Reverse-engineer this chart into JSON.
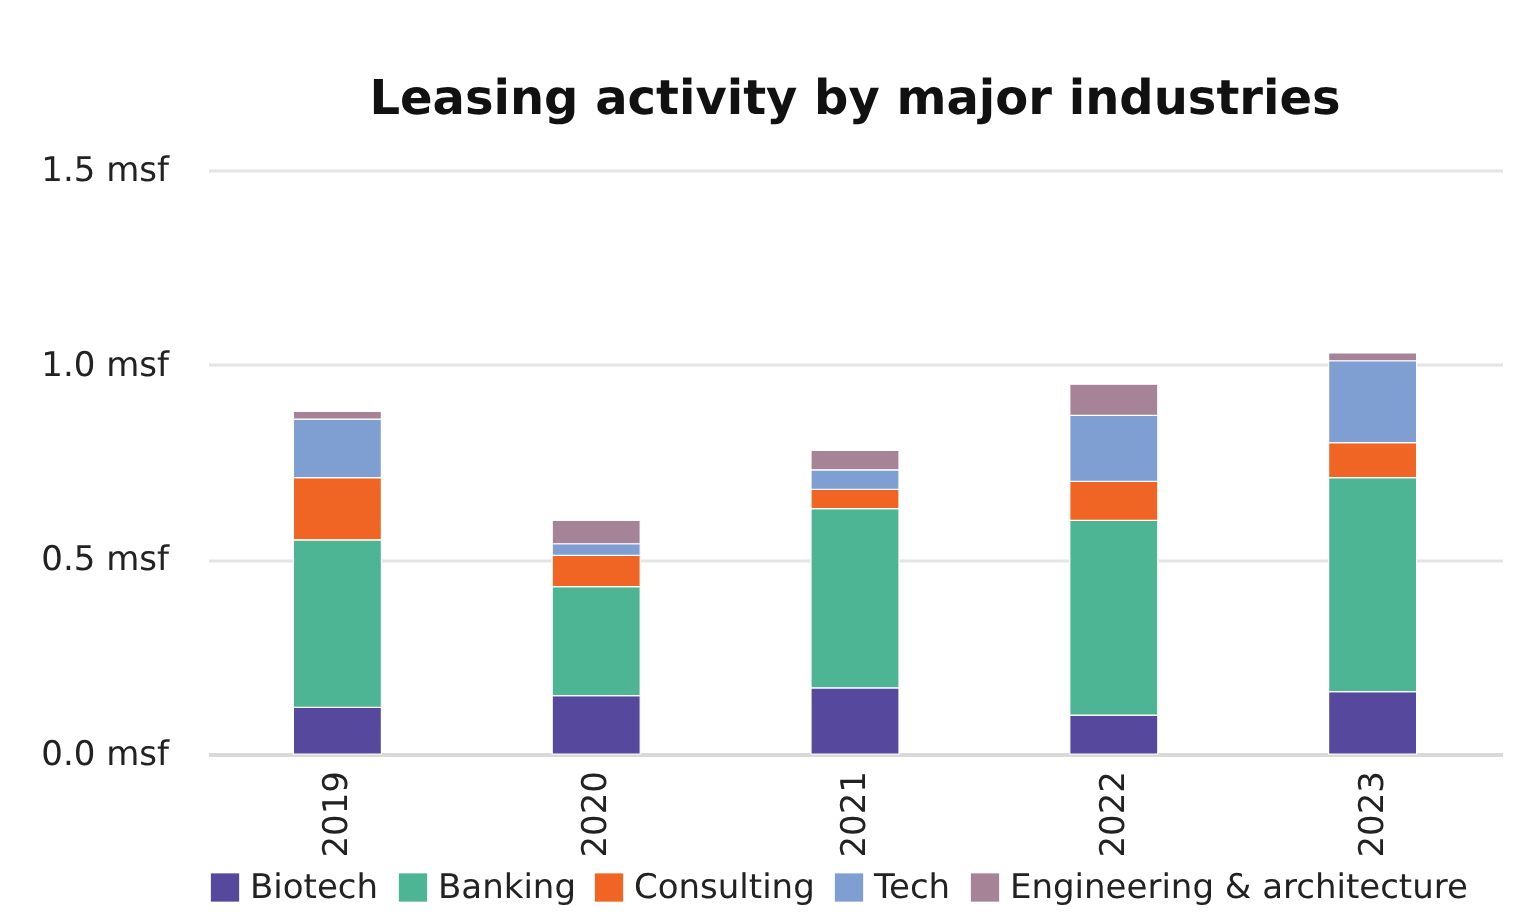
{
  "chart_data": {
    "type": "bar",
    "title": "Leasing activity by major industries",
    "categories": [
      "2019",
      "2020",
      "2021",
      "2022",
      "2023"
    ],
    "stacked": true,
    "series": [
      {
        "name": "Biotech",
        "color": "#55489d",
        "values": [
          0.12,
          0.15,
          0.17,
          0.1,
          0.16
        ]
      },
      {
        "name": "Banking",
        "color": "#4db594",
        "values": [
          0.43,
          0.28,
          0.46,
          0.5,
          0.55
        ]
      },
      {
        "name": "Consulting",
        "color": "#f06524",
        "values": [
          0.16,
          0.08,
          0.05,
          0.1,
          0.09
        ]
      },
      {
        "name": "Tech",
        "color": "#7f9fd3",
        "values": [
          0.15,
          0.03,
          0.05,
          0.17,
          0.21
        ]
      },
      {
        "name": "Engineering & architecture",
        "color": "#a68396",
        "values": [
          0.02,
          0.06,
          0.05,
          0.08,
          0.02
        ]
      }
    ],
    "ylim": [
      0,
      1.5
    ],
    "yticks": [
      {
        "value": 0,
        "label": "0.0 msf"
      },
      {
        "value": 0.5,
        "label": "0.5 msf"
      },
      {
        "value": 1,
        "label": "1.0 msf"
      },
      {
        "value": 1.5,
        "label": "1.5 msf"
      }
    ],
    "grid": "y",
    "legend": "bottom"
  }
}
